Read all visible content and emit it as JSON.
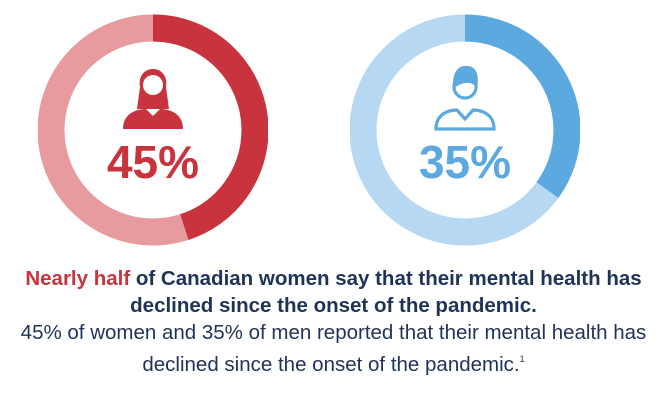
{
  "colors": {
    "women_primary": "#c8333d",
    "women_secondary": "#e79b9f",
    "men_primary": "#5ba9df",
    "men_secondary": "#b6d8f2",
    "text_navy": "#1f3358"
  },
  "chart_data": [
    {
      "type": "pie",
      "subtype": "donut",
      "group": "women",
      "icon": "woman-icon",
      "value": 45,
      "label": "45%",
      "colors": [
        "#c8333d",
        "#e79b9f"
      ]
    },
    {
      "type": "pie",
      "subtype": "donut",
      "group": "men",
      "icon": "man-icon",
      "value": 35,
      "label": "35%",
      "colors": [
        "#5ba9df",
        "#b6d8f2"
      ]
    }
  ],
  "caption": {
    "highlight": "Nearly half",
    "headline_rest": " of Canadian women say that their mental health has declined since the onset of the pandemic.",
    "detail": "45% of women and 35% of men reported that their mental health has declined since the onset of the pandemic.",
    "footnote": "1"
  }
}
